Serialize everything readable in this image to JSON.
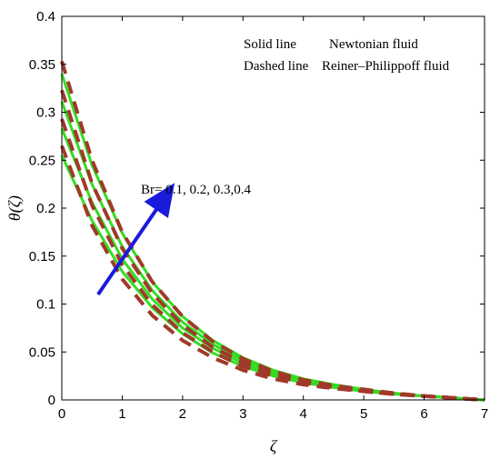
{
  "chart_data": {
    "type": "line",
    "title": "",
    "xlabel": "ζ",
    "ylabel": "θ(ζ)",
    "xlim": [
      0,
      7
    ],
    "ylim": [
      0,
      0.4
    ],
    "xticks": [
      0,
      1,
      2,
      3,
      4,
      5,
      6,
      7
    ],
    "yticks": [
      0,
      0.05,
      0.1,
      0.15,
      0.2,
      0.25,
      0.3,
      0.35,
      0.4
    ],
    "x": [
      0,
      0.5,
      1,
      1.5,
      2,
      2.5,
      3,
      3.5,
      4,
      4.5,
      5,
      5.5,
      6,
      6.5,
      7
    ],
    "legend": {
      "placement": "top-right",
      "entries": [
        {
          "style": "Solid line",
          "label": "Newtonian fluid"
        },
        {
          "style": "Dashed line",
          "label": "Reiner–Philippoff fluid"
        }
      ]
    },
    "annotation": {
      "text": "Br= 0.1, 0.2, 0.3,0.4",
      "arrow_from": [
        0.6,
        0.11
      ],
      "arrow_to": [
        1.8,
        0.22
      ]
    },
    "colors": {
      "solid": "#33dd22",
      "dashed": "#a0392a",
      "arrow": "#1a1adb"
    },
    "series": [
      {
        "group": "solid",
        "param": 0.1,
        "values": [
          0.255,
          0.187,
          0.134,
          0.096,
          0.069,
          0.049,
          0.035,
          0.025,
          0.018,
          0.013,
          0.009,
          0.006,
          0.004,
          0.002,
          0.0
        ]
      },
      {
        "group": "solid",
        "param": 0.2,
        "values": [
          0.283,
          0.206,
          0.147,
          0.105,
          0.075,
          0.054,
          0.038,
          0.027,
          0.019,
          0.014,
          0.01,
          0.007,
          0.004,
          0.002,
          0.0
        ]
      },
      {
        "group": "solid",
        "param": 0.3,
        "values": [
          0.311,
          0.225,
          0.16,
          0.114,
          0.081,
          0.058,
          0.041,
          0.029,
          0.021,
          0.015,
          0.01,
          0.007,
          0.004,
          0.002,
          0.0
        ]
      },
      {
        "group": "solid",
        "param": 0.4,
        "values": [
          0.34,
          0.245,
          0.174,
          0.123,
          0.087,
          0.062,
          0.044,
          0.031,
          0.022,
          0.016,
          0.011,
          0.007,
          0.004,
          0.002,
          0.0
        ]
      },
      {
        "group": "dashed",
        "param": 0.1,
        "values": [
          0.265,
          0.182,
          0.126,
          0.088,
          0.062,
          0.044,
          0.031,
          0.022,
          0.016,
          0.012,
          0.009,
          0.006,
          0.004,
          0.002,
          0.0
        ]
      },
      {
        "group": "dashed",
        "param": 0.2,
        "values": [
          0.293,
          0.203,
          0.141,
          0.099,
          0.07,
          0.05,
          0.035,
          0.025,
          0.018,
          0.013,
          0.009,
          0.006,
          0.004,
          0.002,
          0.0
        ]
      },
      {
        "group": "dashed",
        "param": 0.3,
        "values": [
          0.323,
          0.226,
          0.158,
          0.111,
          0.078,
          0.055,
          0.039,
          0.028,
          0.02,
          0.014,
          0.01,
          0.007,
          0.004,
          0.002,
          0.0
        ]
      },
      {
        "group": "dashed",
        "param": 0.4,
        "values": [
          0.353,
          0.25,
          0.175,
          0.123,
          0.087,
          0.061,
          0.043,
          0.03,
          0.021,
          0.015,
          0.011,
          0.007,
          0.004,
          0.002,
          0.0
        ]
      }
    ]
  }
}
